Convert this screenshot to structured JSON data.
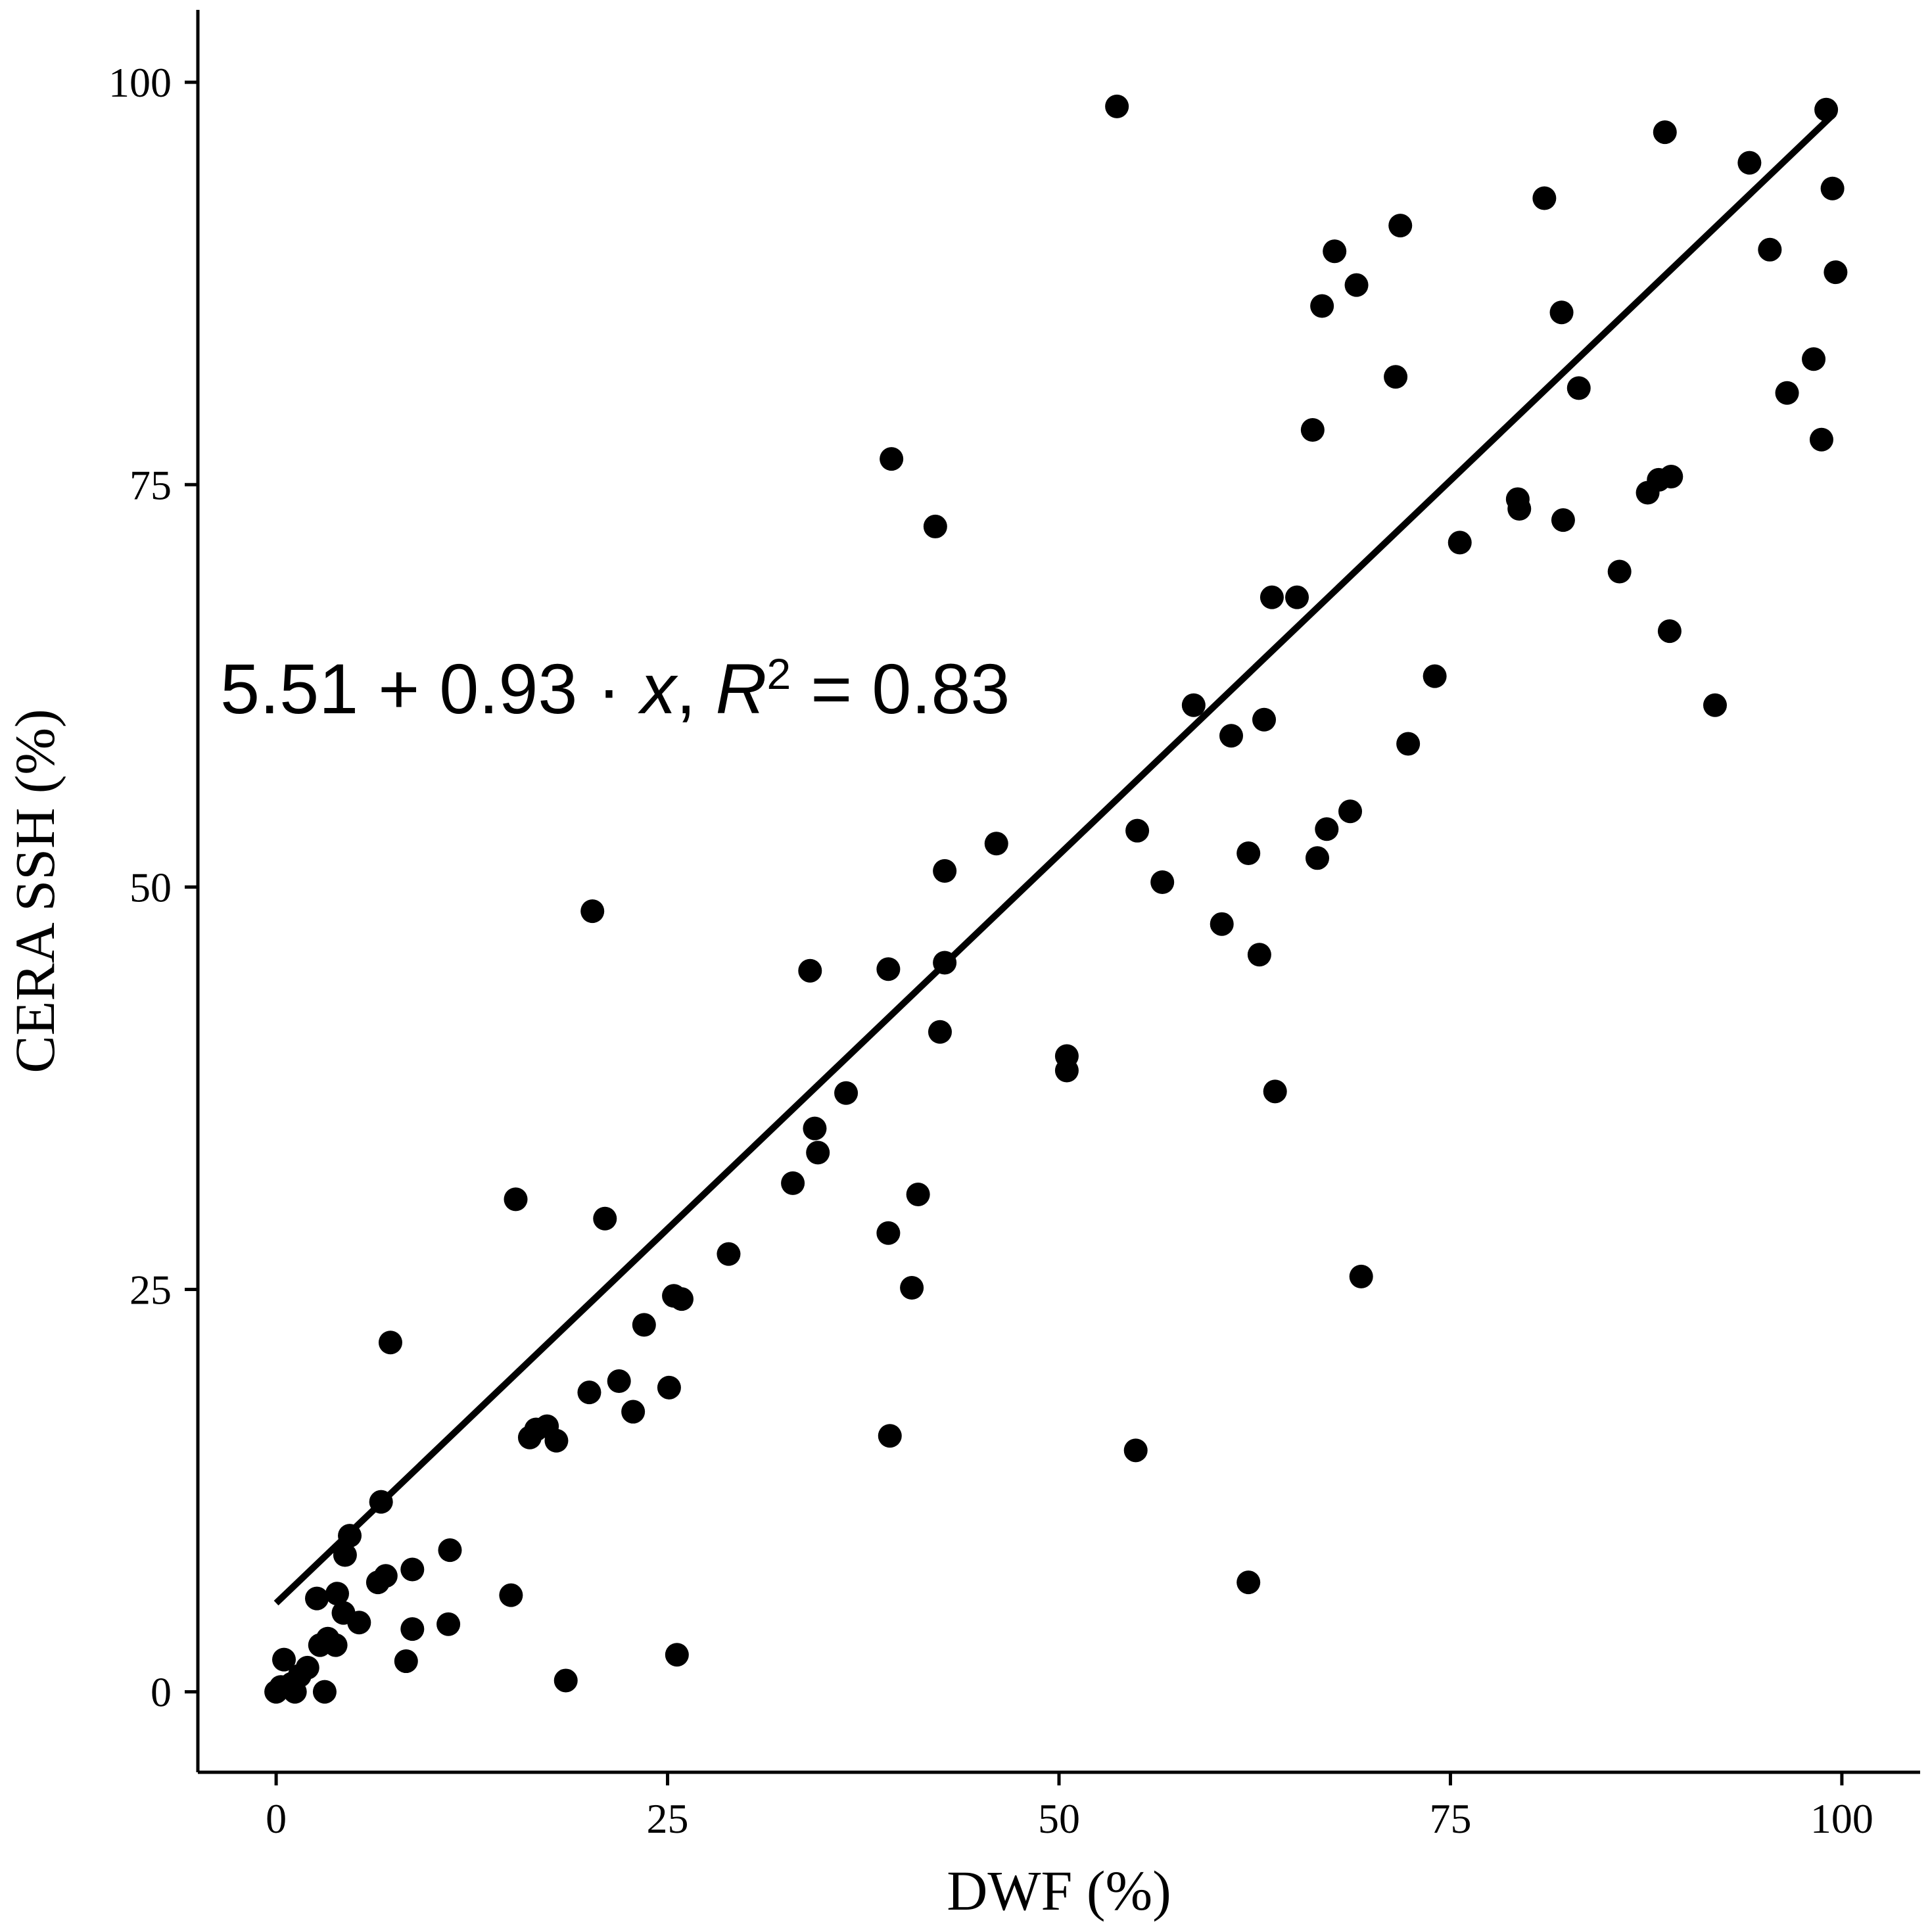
{
  "chart_data": {
    "type": "scatter",
    "xlabel": "DWF (%)",
    "ylabel": "CERA SSH (%)",
    "xlim": [
      -5,
      105
    ],
    "ylim": [
      -5,
      104.5
    ],
    "x_ticks": [
      0,
      25,
      50,
      75,
      100
    ],
    "y_ticks": [
      0,
      25,
      50,
      75,
      100
    ],
    "grid": false,
    "legend": "none",
    "annotation": {
      "prefix": "5.51 + 0.93 · ",
      "var": "x",
      "mid": ",  ",
      "r": "R",
      "sup": "2",
      "suffix": " = 0.83"
    },
    "fit_line": {
      "intercept": 5.51,
      "slope": 0.93,
      "x_range": [
        0,
        99.5
      ]
    },
    "colors": {
      "points": "#000000",
      "line": "#000000",
      "axes": "#000000"
    },
    "points": [
      [
        0.0,
        0.0
      ],
      [
        0.3,
        0.3
      ],
      [
        0.5,
        2.0
      ],
      [
        1.0,
        0.5
      ],
      [
        1.2,
        0.0
      ],
      [
        1.5,
        1.0
      ],
      [
        2.0,
        1.5
      ],
      [
        2.6,
        5.8
      ],
      [
        2.8,
        2.9
      ],
      [
        3.1,
        0.0
      ],
      [
        3.3,
        3.3
      ],
      [
        3.8,
        2.9
      ],
      [
        3.9,
        6.1
      ],
      [
        4.3,
        4.9
      ],
      [
        4.4,
        8.5
      ],
      [
        4.7,
        9.7
      ],
      [
        5.3,
        4.3
      ],
      [
        6.5,
        6.8
      ],
      [
        6.7,
        11.8
      ],
      [
        7.0,
        7.2
      ],
      [
        7.3,
        21.7
      ],
      [
        8.3,
        1.9
      ],
      [
        8.7,
        7.6
      ],
      [
        8.7,
        3.9
      ],
      [
        11.0,
        4.2
      ],
      [
        11.1,
        8.8
      ],
      [
        15.0,
        6.0
      ],
      [
        15.3,
        30.6
      ],
      [
        16.2,
        15.8
      ],
      [
        16.6,
        16.3
      ],
      [
        17.3,
        16.5
      ],
      [
        17.9,
        15.6
      ],
      [
        18.5,
        0.7
      ],
      [
        20.0,
        18.6
      ],
      [
        20.2,
        48.5
      ],
      [
        21.0,
        29.4
      ],
      [
        21.9,
        19.3
      ],
      [
        22.8,
        17.4
      ],
      [
        23.5,
        22.8
      ],
      [
        25.1,
        18.9
      ],
      [
        25.4,
        24.6
      ],
      [
        25.6,
        2.3
      ],
      [
        25.9,
        24.4
      ],
      [
        28.9,
        27.2
      ],
      [
        33.0,
        31.6
      ],
      [
        34.1,
        44.8
      ],
      [
        34.4,
        35.0
      ],
      [
        34.6,
        33.5
      ],
      [
        36.4,
        37.2
      ],
      [
        39.1,
        28.5
      ],
      [
        39.1,
        44.9
      ],
      [
        39.2,
        15.9
      ],
      [
        39.3,
        76.6
      ],
      [
        40.6,
        25.1
      ],
      [
        41.0,
        30.9
      ],
      [
        42.1,
        72.4
      ],
      [
        42.4,
        41.0
      ],
      [
        42.7,
        51.0
      ],
      [
        42.7,
        45.3
      ],
      [
        46.0,
        52.7
      ],
      [
        50.5,
        38.6
      ],
      [
        50.5,
        39.5
      ],
      [
        53.7,
        98.5
      ],
      [
        54.9,
        15.0
      ],
      [
        55.0,
        53.5
      ],
      [
        56.6,
        50.3
      ],
      [
        58.6,
        61.3
      ],
      [
        60.4,
        47.7
      ],
      [
        61.0,
        59.4
      ],
      [
        62.1,
        52.1
      ],
      [
        62.1,
        6.8
      ],
      [
        62.8,
        45.8
      ],
      [
        63.1,
        60.4
      ],
      [
        63.6,
        68.0
      ],
      [
        63.8,
        37.3
      ],
      [
        65.2,
        68.0
      ],
      [
        66.2,
        78.4
      ],
      [
        66.5,
        51.8
      ],
      [
        66.8,
        86.1
      ],
      [
        67.1,
        53.6
      ],
      [
        67.6,
        89.5
      ],
      [
        68.6,
        54.7
      ],
      [
        69.0,
        87.4
      ],
      [
        69.3,
        25.8
      ],
      [
        71.5,
        81.7
      ],
      [
        71.8,
        91.1
      ],
      [
        72.3,
        58.9
      ],
      [
        74.0,
        63.1
      ],
      [
        75.6,
        71.4
      ],
      [
        79.3,
        74.1
      ],
      [
        79.4,
        73.5
      ],
      [
        81.0,
        92.8
      ],
      [
        82.1,
        85.7
      ],
      [
        82.2,
        72.8
      ],
      [
        83.2,
        81.0
      ],
      [
        85.8,
        69.6
      ],
      [
        87.6,
        74.5
      ],
      [
        88.3,
        75.3
      ],
      [
        88.7,
        96.9
      ],
      [
        89.0,
        65.9
      ],
      [
        89.1,
        75.5
      ],
      [
        91.9,
        61.3
      ],
      [
        94.1,
        95.0
      ],
      [
        95.4,
        89.6
      ],
      [
        96.5,
        80.7
      ],
      [
        98.2,
        82.8
      ],
      [
        98.7,
        77.8
      ],
      [
        99.0,
        98.3
      ],
      [
        99.4,
        93.4
      ],
      [
        99.6,
        88.2
      ]
    ]
  }
}
